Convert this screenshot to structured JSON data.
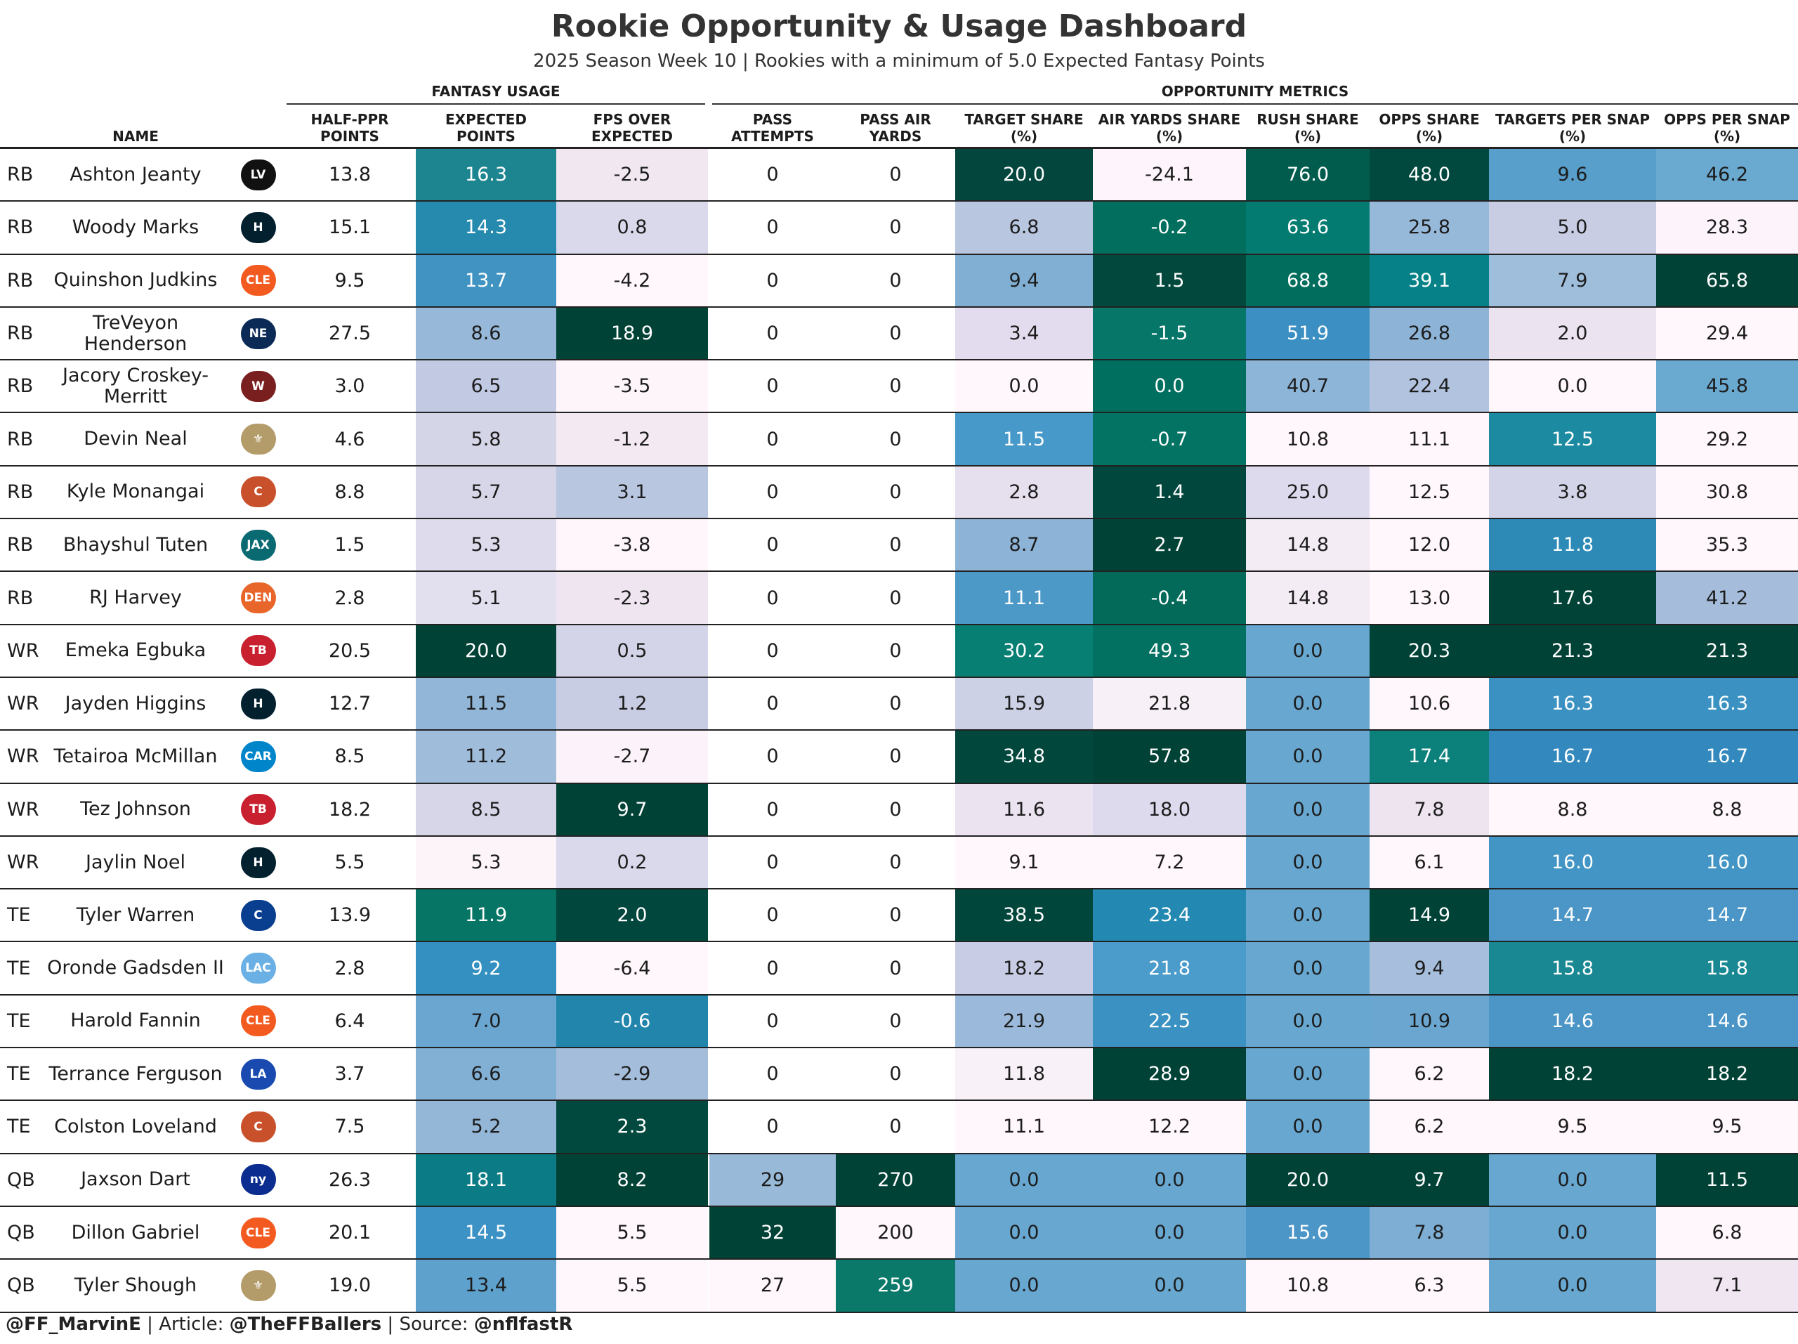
{
  "title": "Rookie Opportunity & Usage Dashboard",
  "subtitle": "2025 Season Week 10 | Rookies with a minimum of 5.0 Expected Fantasy Points",
  "groups": {
    "fantasy": "FANTASY USAGE",
    "opportunity": "OPPORTUNITY METRICS"
  },
  "columns": [
    "NAME",
    "HALF-PPR\nPOINTS",
    "EXPECTED\nPOINTS",
    "FPS OVER\nEXPECTED",
    "PASS\nATTEMPTS",
    "PASS AIR\nYARDS",
    "TARGET SHARE\n(%)",
    "AIR YARDS SHARE\n(%)",
    "RUSH SHARE\n(%)",
    "OPPS SHARE\n(%)",
    "TARGETS PER SNAP\n(%)",
    "OPPS PER SNAP\n(%)"
  ],
  "rows": [
    {
      "pos": "RB",
      "name": "Ashton Jeanty",
      "team": "raiders",
      "v": [
        "13.8",
        "16.3",
        "-2.5",
        "0",
        "0",
        "20.0",
        "-24.1",
        "76.0",
        "48.0",
        "9.6",
        "46.2"
      ],
      "c": [
        "#fff",
        "#1d8590",
        "#f0e7f1",
        "#fff",
        "#fff",
        "#02463d",
        "#fdf5fb",
        "#015c4d",
        "#01483e",
        "#589fcc",
        "#6aa9d0"
      ]
    },
    {
      "pos": "RB",
      "name": "Woody Marks",
      "team": "texans",
      "v": [
        "15.1",
        "14.3",
        "0.8",
        "0",
        "0",
        "6.8",
        "-0.2",
        "63.6",
        "25.8",
        "5.0",
        "28.3"
      ],
      "c": [
        "#fff",
        "#268aaf",
        "#dad9ec",
        "#fff",
        "#fff",
        "#b9c6e0",
        "#026e5d",
        "#037b70",
        "#97b9d9",
        "#c9cde4",
        "#fcf4fa"
      ]
    },
    {
      "pos": "RB",
      "name": "Quinshon Judkins",
      "team": "browns",
      "v": [
        "9.5",
        "13.7",
        "-4.2",
        "0",
        "0",
        "9.4",
        "1.5",
        "68.8",
        "39.1",
        "7.9",
        "65.8"
      ],
      "c": [
        "#fff",
        "#4193c2",
        "#fff7fb",
        "#fff",
        "#fff",
        "#80afd3",
        "#02483d",
        "#016d5d",
        "#058187",
        "#9fbedc",
        "#014236"
      ]
    },
    {
      "pos": "RB",
      "name": "TreVeyon Henderson",
      "team": "patriots",
      "v": [
        "27.5",
        "8.6",
        "18.9",
        "0",
        "0",
        "3.4",
        "-1.5",
        "51.9",
        "26.8",
        "2.0",
        "29.4"
      ],
      "c": [
        "#fff",
        "#97b8d8",
        "#014236",
        "#fff",
        "#fff",
        "#e2dcee",
        "#057668",
        "#3b8fc2",
        "#8db4d6",
        "#ece3f0",
        "#fff7fb"
      ]
    },
    {
      "pos": "RB",
      "name": "Jacory Croskey-\nMerritt",
      "team": "commanders",
      "v": [
        "3.0",
        "6.5",
        "-3.5",
        "0",
        "0",
        "0.0",
        "0.0",
        "40.7",
        "22.4",
        "0.0",
        "45.8"
      ],
      "c": [
        "#fff",
        "#c2cae3",
        "#fdf5fa",
        "#fff",
        "#fff",
        "#fff7fb",
        "#016f5f",
        "#8db5d7",
        "#b2c3df",
        "#fff7fb",
        "#6aa9d0"
      ]
    },
    {
      "pos": "RB",
      "name": "Devin Neal",
      "team": "saints",
      "v": [
        "4.6",
        "5.8",
        "-1.2",
        "0",
        "0",
        "11.5",
        "-0.7",
        "10.8",
        "11.1",
        "12.5",
        "29.2"
      ],
      "c": [
        "#fff",
        "#d5d5e8",
        "#f2e9f3",
        "#fff",
        "#fff",
        "#4799c9",
        "#037464",
        "#fff7fb",
        "#fff7fb",
        "#1c8ba1",
        "#fff7fb"
      ]
    },
    {
      "pos": "RB",
      "name": "Kyle Monangai",
      "team": "bears",
      "v": [
        "8.8",
        "5.7",
        "3.1",
        "0",
        "0",
        "2.8",
        "1.4",
        "25.0",
        "12.5",
        "3.8",
        "30.8"
      ],
      "c": [
        "#fff",
        "#d7d6e9",
        "#b8c6e0",
        "#fff",
        "#fff",
        "#e5dfee",
        "#02473d",
        "#dcdaec",
        "#fff7fb",
        "#d4d4e8",
        "#fff7fb"
      ]
    },
    {
      "pos": "RB",
      "name": "Bhayshul Tuten",
      "team": "jaguars",
      "v": [
        "1.5",
        "5.3",
        "-3.8",
        "0",
        "0",
        "8.7",
        "2.7",
        "14.8",
        "12.0",
        "11.8",
        "35.3"
      ],
      "c": [
        "#fff",
        "#dedcec",
        "#fef6fb",
        "#fff",
        "#fff",
        "#8db4d6",
        "#014236",
        "#f4ecf5",
        "#fff7fb",
        "#2d8ab7",
        "#fff7fb"
      ]
    },
    {
      "pos": "RB",
      "name": "RJ Harvey",
      "team": "broncos",
      "v": [
        "2.8",
        "5.1",
        "-2.3",
        "0",
        "0",
        "11.1",
        "-0.4",
        "14.8",
        "13.0",
        "17.6",
        "41.2"
      ],
      "c": [
        "#fff",
        "#e2dfee",
        "#eee5f1",
        "#fff",
        "#fff",
        "#4c99c8",
        "#036a5a",
        "#f4ecf5",
        "#fff7fb",
        "#014337",
        "#a5bddb"
      ]
    },
    {
      "pos": "WR",
      "name": "Emeka Egbuka",
      "team": "buccaneers",
      "v": [
        "20.5",
        "20.0",
        "0.5",
        "0",
        "0",
        "30.2",
        "49.3",
        "0.0",
        "20.3",
        "21.3",
        "21.3"
      ],
      "c": [
        "#fff",
        "#014236",
        "#d4d4e8",
        "#fff",
        "#fff",
        "#087f73",
        "#037161",
        "#67a7d0",
        "#014236",
        "#014236",
        "#014236"
      ]
    },
    {
      "pos": "WR",
      "name": "Jayden Higgins",
      "team": "texans",
      "v": [
        "12.7",
        "11.5",
        "1.2",
        "0",
        "0",
        "15.9",
        "21.8",
        "0.0",
        "10.6",
        "16.3",
        "16.3"
      ],
      "c": [
        "#fff",
        "#91b6d8",
        "#c9cde4",
        "#fff",
        "#fff",
        "#ccd1e6",
        "#f7f0f7",
        "#67a7d0",
        "#fff7fb",
        "#3b92c2",
        "#3b92c2"
      ]
    },
    {
      "pos": "WR",
      "name": "Tetairoa McMillan",
      "team": "panthers",
      "v": [
        "8.5",
        "11.2",
        "-2.7",
        "0",
        "0",
        "34.8",
        "57.8",
        "0.0",
        "17.4",
        "16.7",
        "16.7"
      ],
      "c": [
        "#fff",
        "#9fbcdb",
        "#fbf3f9",
        "#fff",
        "#fff",
        "#01473c",
        "#014236",
        "#67a7d0",
        "#0c817c",
        "#3388be",
        "#3388be"
      ]
    },
    {
      "pos": "WR",
      "name": "Tez Johnson",
      "team": "buccaneers",
      "v": [
        "18.2",
        "8.5",
        "9.7",
        "0",
        "0",
        "11.6",
        "18.0",
        "0.0",
        "7.8",
        "8.8",
        "8.8"
      ],
      "c": [
        "#fff",
        "#d7d6e9",
        "#014236",
        "#fff",
        "#fff",
        "#ebe3f0",
        "#dcdaec",
        "#67a7d0",
        "#ede4f0",
        "#fff7fb",
        "#fff7fb"
      ]
    },
    {
      "pos": "WR",
      "name": "Jaylin Noel",
      "team": "texans",
      "v": [
        "5.5",
        "5.3",
        "0.2",
        "0",
        "0",
        "9.1",
        "7.2",
        "0.0",
        "6.1",
        "16.0",
        "16.0"
      ],
      "c": [
        "#fff",
        "#fdf4fa",
        "#dad9ec",
        "#fff",
        "#fff",
        "#fff7fb",
        "#fff7fb",
        "#67a7d0",
        "#fff7fb",
        "#4295c4",
        "#4295c4"
      ]
    },
    {
      "pos": "TE",
      "name": "Tyler Warren",
      "team": "colts",
      "v": [
        "13.9",
        "11.9",
        "2.0",
        "0",
        "0",
        "38.5",
        "23.4",
        "0.0",
        "14.9",
        "14.7",
        "14.7"
      ],
      "c": [
        "#fff",
        "#077565",
        "#02473d",
        "#fff",
        "#fff",
        "#01463b",
        "#2489b2",
        "#67a7d0",
        "#014236",
        "#4b96c7",
        "#4b96c7"
      ]
    },
    {
      "pos": "TE",
      "name": "Oronde Gadsden II",
      "team": "chargers",
      "v": [
        "2.8",
        "9.2",
        "-6.4",
        "0",
        "0",
        "18.2",
        "21.8",
        "0.0",
        "9.4",
        "15.8",
        "15.8"
      ],
      "c": [
        "#fff",
        "#3490c0",
        "#fff7fb",
        "#fff",
        "#fff",
        "#c8cce4",
        "#4b9bcb",
        "#67a7d0",
        "#a7bfdc",
        "#198892",
        "#198892"
      ]
    },
    {
      "pos": "TE",
      "name": "Harold Fannin",
      "team": "browns",
      "v": [
        "6.4",
        "7.0",
        "-0.6",
        "0",
        "0",
        "21.9",
        "22.5",
        "0.0",
        "10.9",
        "14.6",
        "14.6"
      ],
      "c": [
        "#fff",
        "#6aa6cf",
        "#2185ac",
        "#fff",
        "#fff",
        "#9bbadb",
        "#3b92c2",
        "#67a7d0",
        "#6aa6cf",
        "#4b96c7",
        "#4b96c7"
      ]
    },
    {
      "pos": "TE",
      "name": "Terrance Ferguson",
      "team": "rams",
      "v": [
        "3.7",
        "6.6",
        "-2.9",
        "0",
        "0",
        "11.8",
        "28.9",
        "0.0",
        "6.2",
        "18.2",
        "18.2"
      ],
      "c": [
        "#fff",
        "#81b0d4",
        "#a4bddb",
        "#fff",
        "#fff",
        "#f9f1f8",
        "#014236",
        "#67a7d0",
        "#fff7fb",
        "#014236",
        "#014236"
      ]
    },
    {
      "pos": "TE",
      "name": "Colston Loveland",
      "team": "bears",
      "v": [
        "7.5",
        "5.2",
        "2.3",
        "0",
        "0",
        "11.1",
        "12.2",
        "0.0",
        "6.2",
        "9.5",
        "9.5"
      ],
      "c": [
        "#fff",
        "#94b7d8",
        "#01493e",
        "#fff",
        "#fff",
        "#fff7fb",
        "#fff7fb",
        "#67a7d0",
        "#fff7fb",
        "#fff7fb",
        "#fff7fb"
      ]
    },
    {
      "pos": "QB",
      "name": "Jaxson Dart",
      "team": "giants",
      "v": [
        "26.3",
        "18.1",
        "8.2",
        "29",
        "270",
        "0.0",
        "0.0",
        "20.0",
        "9.7",
        "0.0",
        "11.5"
      ],
      "c": [
        "#fff",
        "#0b7c86",
        "#014236",
        "#99b9d9",
        "#014236",
        "#67a7d0",
        "#67a7d0",
        "#014236",
        "#014236",
        "#67a7d0",
        "#014236"
      ]
    },
    {
      "pos": "QB",
      "name": "Dillon Gabriel",
      "team": "browns",
      "v": [
        "20.1",
        "14.5",
        "5.5",
        "32",
        "200",
        "0.0",
        "0.0",
        "15.6",
        "7.8",
        "0.0",
        "6.8"
      ],
      "c": [
        "#fff",
        "#3d92c5",
        "#fff7fb",
        "#014236",
        "#fff7fb",
        "#67a7d0",
        "#67a7d0",
        "#4b96c7",
        "#7eaed3",
        "#67a7d0",
        "#fff7fb"
      ]
    },
    {
      "pos": "QB",
      "name": "Tyler Shough",
      "team": "saints",
      "v": [
        "19.0",
        "13.4",
        "5.5",
        "27",
        "259",
        "0.0",
        "0.0",
        "10.8",
        "6.3",
        "0.0",
        "7.1"
      ],
      "c": [
        "#fff",
        "#5ea1cc",
        "#fff7fb",
        "#fff7fb",
        "#0a7969",
        "#67a7d0",
        "#67a7d0",
        "#fff7fb",
        "#fff7fb",
        "#67a7d0",
        "#efe6f1"
      ]
    }
  ],
  "teams": {
    "raiders": {
      "abbr": "LV",
      "color": "#111111"
    },
    "texans": {
      "abbr": "H",
      "color": "#03202f"
    },
    "browns": {
      "abbr": "CLE",
      "color": "#f35a1f"
    },
    "patriots": {
      "abbr": "NE",
      "color": "#0b2a56"
    },
    "commanders": {
      "abbr": "W",
      "color": "#7a1f1f"
    },
    "saints": {
      "abbr": "⚜",
      "color": "#b39c6a"
    },
    "bears": {
      "abbr": "C",
      "color": "#c8502a"
    },
    "jaguars": {
      "abbr": "JAX",
      "color": "#0a6a72"
    },
    "broncos": {
      "abbr": "DEN",
      "color": "#e8662a"
    },
    "buccaneers": {
      "abbr": "TB",
      "color": "#c8202f"
    },
    "panthers": {
      "abbr": "CAR",
      "color": "#0085ca"
    },
    "colts": {
      "abbr": "C",
      "color": "#0a3e8f"
    },
    "chargers": {
      "abbr": "LAC",
      "color": "#6ab0e4"
    },
    "rams": {
      "abbr": "LA",
      "color": "#1a4ab0"
    },
    "giants": {
      "abbr": "ny",
      "color": "#0a2d8f"
    }
  },
  "footer": {
    "handle": "@FF_MarvinE",
    "sep1": " | Article: ",
    "article": "@TheFFBallers",
    "sep2": " | Source: ",
    "source": "@nflfastR"
  }
}
